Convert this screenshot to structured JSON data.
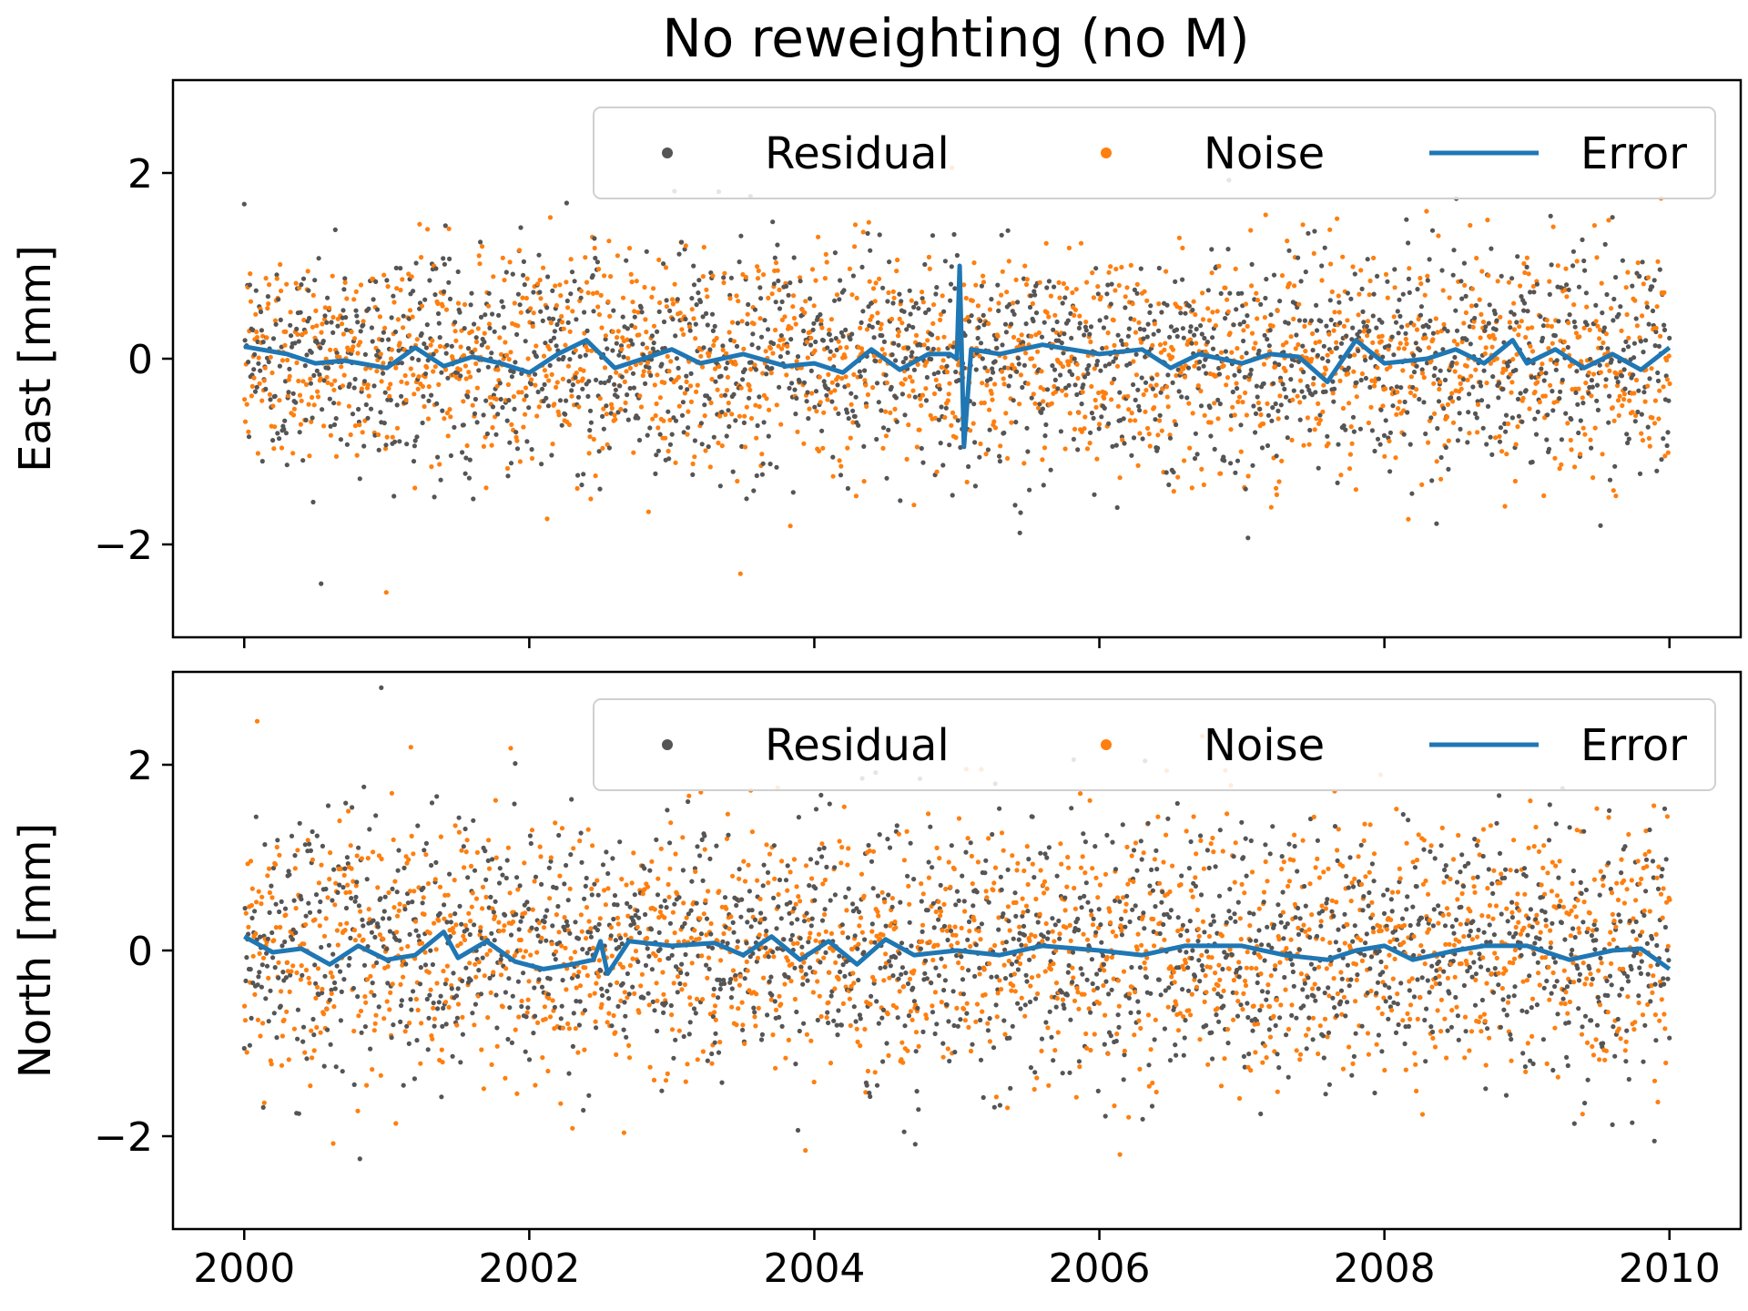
{
  "title": "No reweighting (no M)",
  "colors": {
    "residual": "#555555",
    "noise": "#ff7f0e",
    "error": "#1f77b4"
  },
  "chart_data": [
    {
      "type": "scatter",
      "ylabel": "East [mm]",
      "xlabel": "",
      "xlim": [
        1999.5,
        2010.5
      ],
      "ylim": [
        -3,
        3
      ],
      "xticks": [
        2000,
        2002,
        2004,
        2006,
        2008,
        2010
      ],
      "yticks": [
        -2,
        0,
        2
      ],
      "xtick_labels_visible": false,
      "legend": {
        "placement": "top-right",
        "entries": [
          "Residual",
          "Noise",
          "Error"
        ]
      },
      "series": [
        {
          "name": "Residual",
          "kind": "scatter",
          "note_values": "daily points 2000–2010, spread approx ±0.6 mm (1σ)",
          "sigma": 0.6
        },
        {
          "name": "Noise",
          "kind": "scatter",
          "sigma": 0.6
        },
        {
          "name": "Error",
          "kind": "line",
          "x": [
            2000.0,
            2000.3,
            2000.5,
            2000.7,
            2001.0,
            2001.2,
            2001.4,
            2001.6,
            2001.8,
            2002.0,
            2002.2,
            2002.4,
            2002.6,
            2003.0,
            2003.2,
            2003.5,
            2003.8,
            2004.0,
            2004.2,
            2004.4,
            2004.6,
            2004.8,
            2004.95,
            2005.0,
            2005.02,
            2005.05,
            2005.1,
            2005.3,
            2005.6,
            2006.0,
            2006.3,
            2006.5,
            2006.7,
            2007.0,
            2007.2,
            2007.4,
            2007.6,
            2007.8,
            2008.0,
            2008.3,
            2008.5,
            2008.7,
            2008.9,
            2009.0,
            2009.2,
            2009.4,
            2009.6,
            2009.8,
            2010.0
          ],
          "y": [
            0.13,
            0.05,
            -0.05,
            -0.02,
            -0.1,
            0.12,
            -0.08,
            0.02,
            -0.05,
            -0.15,
            0.05,
            0.2,
            -0.1,
            0.1,
            -0.05,
            0.05,
            -0.08,
            -0.05,
            -0.15,
            0.1,
            -0.12,
            0.05,
            0.05,
            0.0,
            1.0,
            -0.95,
            0.1,
            0.05,
            0.15,
            0.05,
            0.1,
            -0.1,
            0.05,
            -0.05,
            0.05,
            0.02,
            -0.25,
            0.2,
            -0.05,
            0.0,
            0.1,
            -0.05,
            0.2,
            -0.05,
            0.1,
            -0.1,
            0.05,
            -0.12,
            0.12
          ]
        }
      ]
    },
    {
      "type": "scatter",
      "ylabel": "North [mm]",
      "xlabel": "",
      "xlim": [
        1999.5,
        2010.5
      ],
      "ylim": [
        -3,
        3
      ],
      "xticks": [
        2000,
        2002,
        2004,
        2006,
        2008,
        2010
      ],
      "yticks": [
        -2,
        0,
        2
      ],
      "xtick_labels_visible": true,
      "legend": {
        "placement": "top-right",
        "entries": [
          "Residual",
          "Noise",
          "Error"
        ]
      },
      "series": [
        {
          "name": "Residual",
          "kind": "scatter",
          "sigma": 0.7
        },
        {
          "name": "Noise",
          "kind": "scatter",
          "sigma": 0.7
        },
        {
          "name": "Error",
          "kind": "line",
          "x": [
            2000.0,
            2000.2,
            2000.4,
            2000.6,
            2000.8,
            2001.0,
            2001.2,
            2001.4,
            2001.5,
            2001.7,
            2001.9,
            2002.1,
            2002.3,
            2002.45,
            2002.5,
            2002.55,
            2002.7,
            2003.0,
            2003.3,
            2003.5,
            2003.7,
            2003.9,
            2004.1,
            2004.3,
            2004.5,
            2004.7,
            2005.0,
            2005.3,
            2005.6,
            2006.0,
            2006.3,
            2006.6,
            2007.0,
            2007.3,
            2007.6,
            2007.8,
            2008.0,
            2008.2,
            2008.5,
            2008.7,
            2009.0,
            2009.3,
            2009.6,
            2009.8,
            2010.0
          ],
          "y": [
            0.15,
            -0.02,
            0.02,
            -0.15,
            0.05,
            -0.1,
            -0.05,
            0.2,
            -0.08,
            0.1,
            -0.12,
            -0.2,
            -0.15,
            -0.1,
            0.1,
            -0.25,
            0.1,
            0.05,
            0.08,
            -0.05,
            0.15,
            -0.1,
            0.1,
            -0.15,
            0.12,
            -0.05,
            0.0,
            -0.05,
            0.05,
            0.0,
            -0.05,
            0.05,
            0.05,
            -0.05,
            -0.1,
            0.0,
            0.05,
            -0.1,
            0.0,
            0.05,
            0.05,
            -0.1,
            0.0,
            0.02,
            -0.2
          ]
        }
      ]
    }
  ]
}
